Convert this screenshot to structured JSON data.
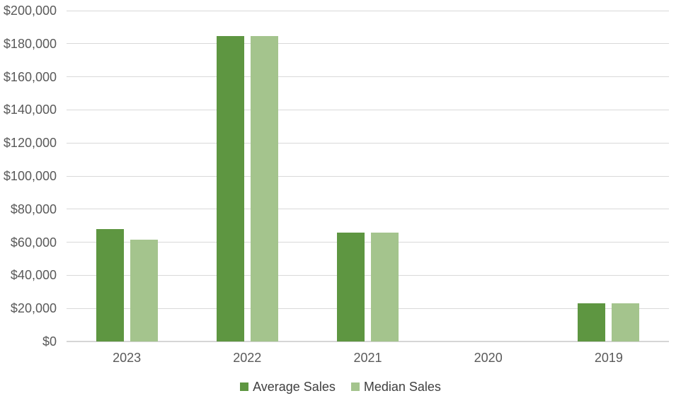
{
  "chart_data": {
    "type": "bar",
    "title": "",
    "categories": [
      "2023",
      "2022",
      "2021",
      "2020",
      "2019"
    ],
    "series": [
      {
        "name": "Average Sales",
        "color": "#5E9641",
        "values": [
          68000,
          184500,
          66000,
          0,
          23000
        ]
      },
      {
        "name": "Median Sales",
        "color": "#A4C48D",
        "values": [
          61500,
          184500,
          66000,
          0,
          23000
        ]
      }
    ],
    "ylim": [
      0,
      200000
    ],
    "ytick_step": 20000,
    "ytick_labels": [
      "$0",
      "$20,000",
      "$40,000",
      "$60,000",
      "$80,000",
      "$100,000",
      "$120,000",
      "$140,000",
      "$160,000",
      "$180,000",
      "$200,000"
    ],
    "grid": true,
    "legend_position": "bottom",
    "colors": {
      "gridline": "#D9D9D9",
      "axis_line": "#D6D6D6",
      "axis_text": "#595959",
      "legend_text": "#404040",
      "background": "#FFFFFF"
    }
  }
}
